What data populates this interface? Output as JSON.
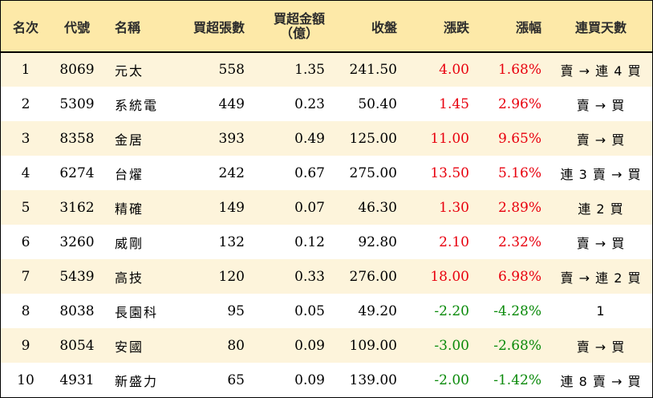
{
  "headers": {
    "rank": "名次",
    "code": "代號",
    "name": "名稱",
    "buy_lots": "買超張數",
    "buy_amount_line1": "買超金額",
    "buy_amount_line2": "（億）",
    "close": "收盤",
    "change": "漲跌",
    "change_pct": "漲幅",
    "streak": "連買天數"
  },
  "rows": [
    {
      "rank": "1",
      "code": "8069",
      "name": "元太",
      "lots": "558",
      "amount": "1.35",
      "close": "241.50",
      "change": "4.00",
      "pct": "1.68%",
      "dir": "pos",
      "streak": "賣 → 連 4 買"
    },
    {
      "rank": "2",
      "code": "5309",
      "name": "系統電",
      "lots": "449",
      "amount": "0.23",
      "close": "50.40",
      "change": "1.45",
      "pct": "2.96%",
      "dir": "pos",
      "streak": "賣 → 買"
    },
    {
      "rank": "3",
      "code": "8358",
      "name": "金居",
      "lots": "393",
      "amount": "0.49",
      "close": "125.00",
      "change": "11.00",
      "pct": "9.65%",
      "dir": "pos",
      "streak": "賣 → 買"
    },
    {
      "rank": "4",
      "code": "6274",
      "name": "台燿",
      "lots": "242",
      "amount": "0.67",
      "close": "275.00",
      "change": "13.50",
      "pct": "5.16%",
      "dir": "pos",
      "streak": "連 3 賣 → 買"
    },
    {
      "rank": "5",
      "code": "3162",
      "name": "精確",
      "lots": "149",
      "amount": "0.07",
      "close": "46.30",
      "change": "1.30",
      "pct": "2.89%",
      "dir": "pos",
      "streak": "連 2 買"
    },
    {
      "rank": "6",
      "code": "3260",
      "name": "威剛",
      "lots": "132",
      "amount": "0.12",
      "close": "92.80",
      "change": "2.10",
      "pct": "2.32%",
      "dir": "pos",
      "streak": "賣 → 買"
    },
    {
      "rank": "7",
      "code": "5439",
      "name": "高技",
      "lots": "120",
      "amount": "0.33",
      "close": "276.00",
      "change": "18.00",
      "pct": "6.98%",
      "dir": "pos",
      "streak": "賣 → 連 2 買"
    },
    {
      "rank": "8",
      "code": "8038",
      "name": "長園科",
      "lots": "95",
      "amount": "0.05",
      "close": "49.20",
      "change": "-2.20",
      "pct": "-4.28%",
      "dir": "neg",
      "streak": "1"
    },
    {
      "rank": "9",
      "code": "8054",
      "name": "安國",
      "lots": "80",
      "amount": "0.09",
      "close": "109.00",
      "change": "-3.00",
      "pct": "-2.68%",
      "dir": "neg",
      "streak": "賣 → 買"
    },
    {
      "rank": "10",
      "code": "4931",
      "name": "新盛力",
      "lots": "65",
      "amount": "0.09",
      "close": "139.00",
      "change": "-2.00",
      "pct": "-1.42%",
      "dir": "neg",
      "streak": "連 8 賣 → 買"
    }
  ],
  "colors": {
    "header_bg": "#fde9a8",
    "odd_row_bg": "#fdf4db",
    "even_row_bg": "#ffffff",
    "up": "#e8000e",
    "down": "#0a8a0a"
  }
}
